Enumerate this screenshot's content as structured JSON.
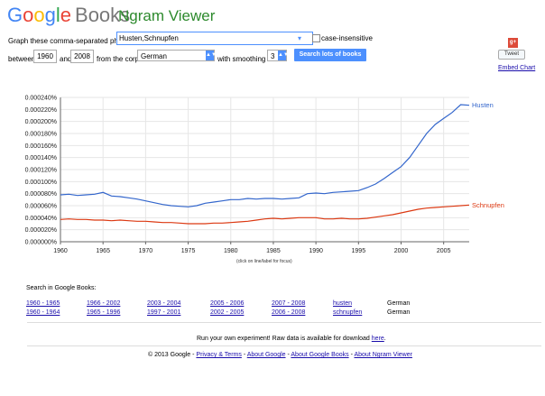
{
  "header": {
    "logo_text": "Google",
    "logo_books": "Books",
    "app_title": "Ngram Viewer"
  },
  "form": {
    "phrases_label": "Graph these comma-separated phrases:",
    "phrases_value": "Husten,Schnupfen",
    "case_insensitive_label": "case-insensitive",
    "case_insensitive_checked": false,
    "between_label": "between",
    "year_start": "1960",
    "and_label": "and",
    "year_end": "2008",
    "corpus_label": "from the corpus",
    "corpus_value": "German",
    "smoothing_label": "with smoothing of",
    "smoothing_value": "3",
    "search_button": "Search lots of books"
  },
  "side": {
    "tweet_label": "Tweet",
    "embed_label": "Embed Chart",
    "gplus_icon": "google-plus-icon"
  },
  "chart_data": {
    "type": "line",
    "x": [
      1960,
      1961,
      1962,
      1963,
      1964,
      1965,
      1966,
      1967,
      1968,
      1969,
      1970,
      1971,
      1972,
      1973,
      1974,
      1975,
      1976,
      1977,
      1978,
      1979,
      1980,
      1981,
      1982,
      1983,
      1984,
      1985,
      1986,
      1987,
      1988,
      1989,
      1990,
      1991,
      1992,
      1993,
      1994,
      1995,
      1996,
      1997,
      1998,
      1999,
      2000,
      2001,
      2002,
      2003,
      2004,
      2005,
      2006,
      2007,
      2008
    ],
    "series": [
      {
        "name": "Husten",
        "color": "#3366cc",
        "values": [
          7.8e-06,
          7.9e-06,
          7.7e-06,
          7.8e-06,
          7.9e-06,
          8.2e-06,
          7.6e-06,
          7.5e-06,
          7.3e-06,
          7.1e-06,
          6.8e-06,
          6.5e-06,
          6.2e-06,
          6e-06,
          5.9e-06,
          5.8e-06,
          6e-06,
          6.4e-06,
          6.6e-06,
          6.8e-06,
          7e-06,
          7e-06,
          7.2e-06,
          7.1e-06,
          7.2e-06,
          7.2e-06,
          7.1e-06,
          7.2e-06,
          7.3e-06,
          8e-06,
          8.1e-06,
          8e-06,
          8.2e-06,
          8.3e-06,
          8.4e-06,
          8.5e-06,
          9e-06,
          9.6e-06,
          1.05e-05,
          1.15e-05,
          1.25e-05,
          1.4e-05,
          1.6e-05,
          1.8e-05,
          1.95e-05,
          2.05e-05,
          2.15e-05,
          2.28e-05,
          2.27e-05
        ]
      },
      {
        "name": "Schnupfen",
        "color": "#dc3912",
        "values": [
          3.7e-06,
          3.8e-06,
          3.7e-06,
          3.7e-06,
          3.6e-06,
          3.6e-06,
          3.5e-06,
          3.6e-06,
          3.5e-06,
          3.4e-06,
          3.4e-06,
          3.3e-06,
          3.2e-06,
          3.2e-06,
          3.1e-06,
          3e-06,
          3e-06,
          3e-06,
          3.1e-06,
          3.1e-06,
          3.2e-06,
          3.3e-06,
          3.4e-06,
          3.6e-06,
          3.8e-06,
          3.9e-06,
          3.8e-06,
          3.9e-06,
          4e-06,
          4e-06,
          4e-06,
          3.8e-06,
          3.8e-06,
          3.9e-06,
          3.8e-06,
          3.8e-06,
          3.9e-06,
          4.1e-06,
          4.3e-06,
          4.5e-06,
          4.8e-06,
          5.1e-06,
          5.4e-06,
          5.6e-06,
          5.7e-06,
          5.8e-06,
          5.9e-06,
          6e-06,
          6.1e-06
        ]
      }
    ],
    "yticks": [
      "0.000000%",
      "0.000020%",
      "0.000040%",
      "0.000060%",
      "0.000080%",
      "0.000100%",
      "0.000120%",
      "0.000140%",
      "0.000160%",
      "0.000180%",
      "0.000200%",
      "0.000220%",
      "0.000240%"
    ],
    "xticks": [
      "1960",
      "1965",
      "1970",
      "1975",
      "1980",
      "1985",
      "1990",
      "1995",
      "2000",
      "2005"
    ],
    "ylim": [
      0,
      2.4e-05
    ],
    "xlim": [
      1960,
      2008
    ],
    "grid": true,
    "hint": "(click on line/label for focus)"
  },
  "google_books": {
    "label": "Search in Google Books:",
    "rows": [
      [
        "1960 - 1965",
        "1966 - 2002",
        "2003 - 2004",
        "2005 - 2006",
        "2007 - 2008",
        "husten",
        "German"
      ],
      [
        "1960 - 1964",
        "1965 - 1996",
        "1997 - 2001",
        "2002 - 2005",
        "2006 - 2008",
        "schnupfen",
        "German"
      ]
    ]
  },
  "footer": {
    "raw_data_text": "Run your own experiment! Raw data is available for download",
    "raw_data_link": "here",
    "copyright": "© 2013 Google -",
    "links": [
      "Privacy & Terms",
      "About Google",
      "About Google Books",
      "About Ngram Viewer"
    ]
  }
}
